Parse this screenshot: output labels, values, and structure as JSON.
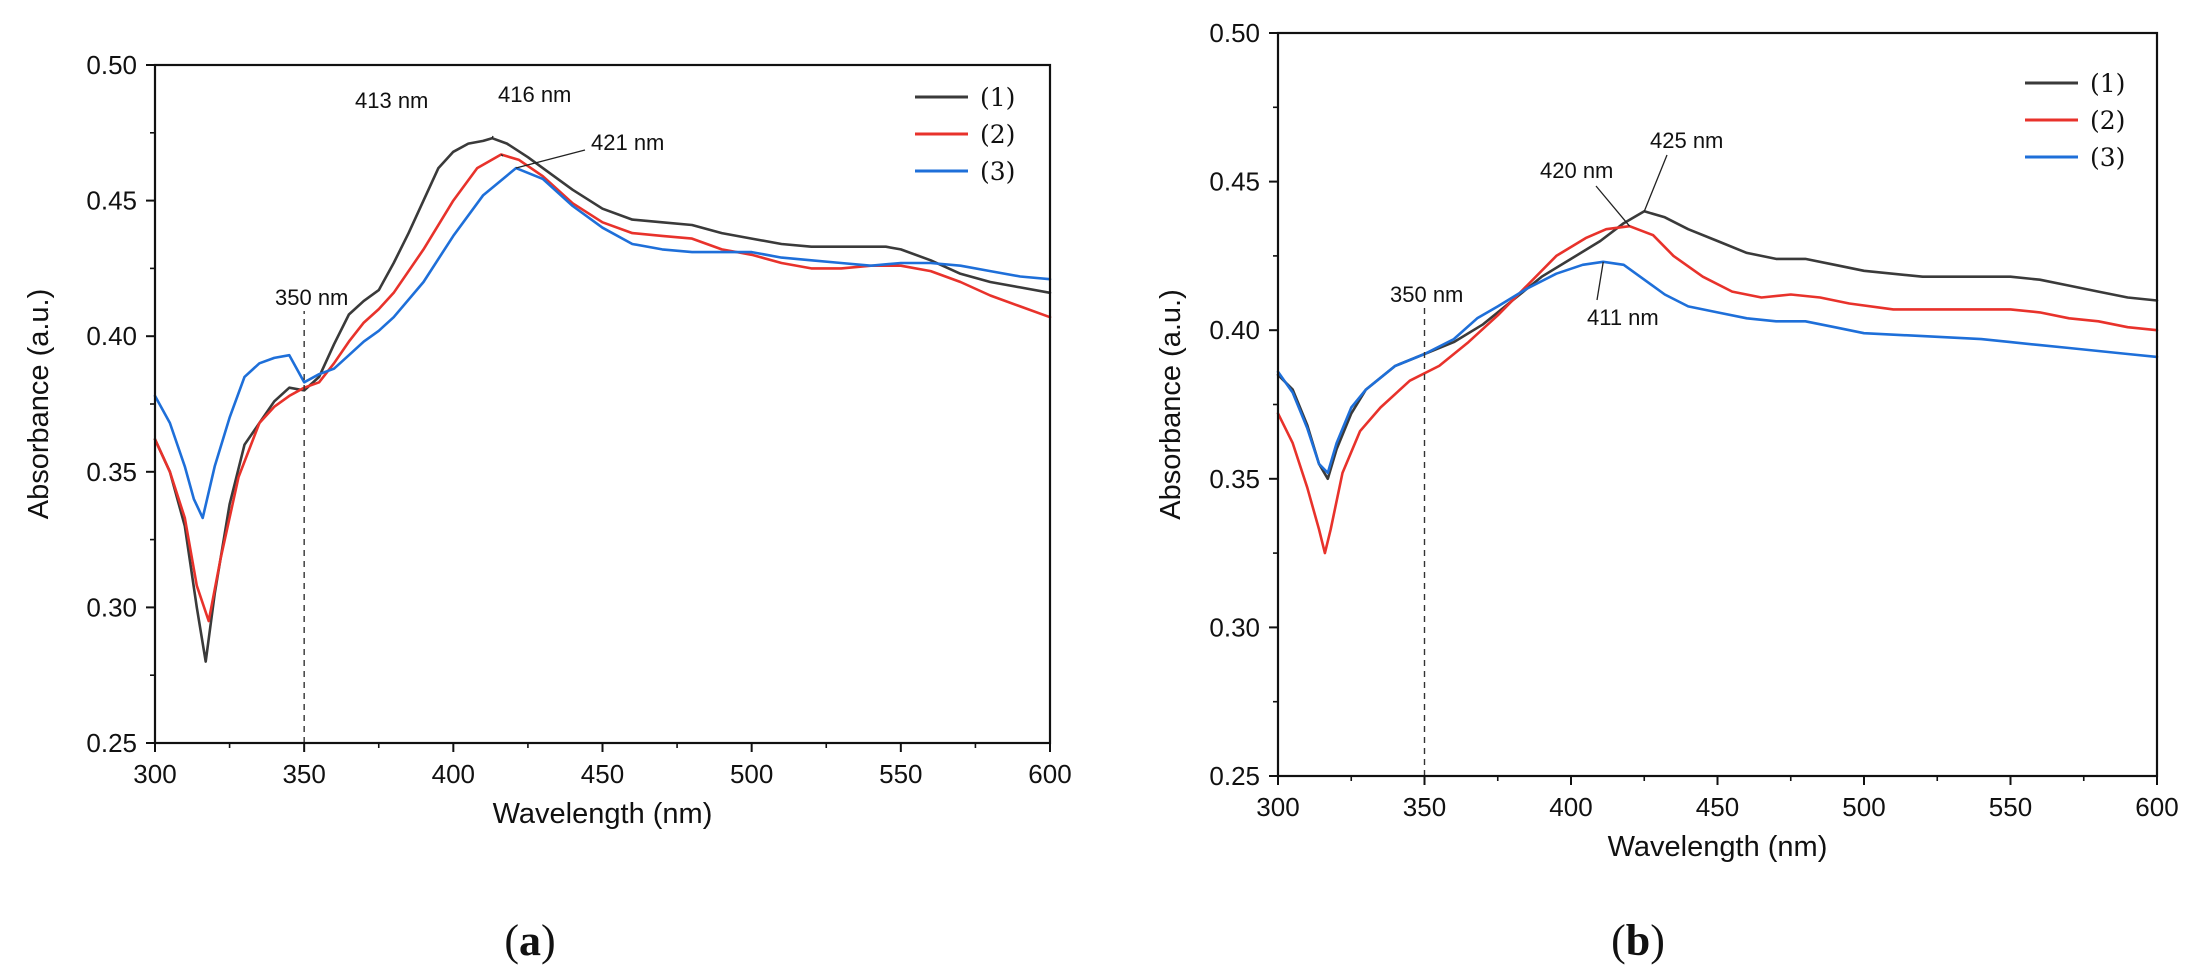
{
  "figure": {
    "panel_labels": [
      "a",
      "b"
    ]
  },
  "chart_data": [
    {
      "type": "line",
      "panel": "a",
      "title": "",
      "xlabel": "Wavelength (nm)",
      "ylabel": "Absorbance (a.u.)",
      "xlim": [
        300,
        600
      ],
      "ylim": [
        0.25,
        0.5
      ],
      "xticks": [
        300,
        350,
        400,
        450,
        500,
        550,
        600
      ],
      "xtick_labels": [
        "300",
        "350",
        "400",
        "450",
        "500",
        "550",
        "600"
      ],
      "yticks": [
        0.25,
        0.3,
        0.35,
        0.4,
        0.45,
        0.5
      ],
      "ytick_labels": [
        "0.25",
        "0.30",
        "0.35",
        "0.40",
        "0.45",
        "0.50"
      ],
      "grid": false,
      "legend_position": "top-right",
      "reference_line": {
        "x": 350,
        "label": "350 nm",
        "style": "dashed"
      },
      "series": [
        {
          "name": "(1)",
          "color": "#3a3a3a",
          "x": [
            300,
            305,
            310,
            314,
            317,
            320,
            325,
            330,
            335,
            340,
            345,
            350,
            355,
            360,
            365,
            370,
            375,
            380,
            385,
            390,
            395,
            400,
            405,
            410,
            413,
            418,
            425,
            430,
            440,
            450,
            460,
            470,
            480,
            490,
            500,
            510,
            520,
            530,
            540,
            545,
            550,
            560,
            570,
            580,
            590,
            600
          ],
          "y": [
            0.362,
            0.35,
            0.33,
            0.3,
            0.28,
            0.305,
            0.338,
            0.36,
            0.368,
            0.376,
            0.381,
            0.38,
            0.385,
            0.397,
            0.408,
            0.413,
            0.417,
            0.427,
            0.438,
            0.45,
            0.462,
            0.468,
            0.471,
            0.472,
            0.473,
            0.471,
            0.466,
            0.462,
            0.454,
            0.447,
            0.443,
            0.442,
            0.441,
            0.438,
            0.436,
            0.434,
            0.433,
            0.433,
            0.433,
            0.433,
            0.432,
            0.428,
            0.423,
            0.42,
            0.418,
            0.416
          ]
        },
        {
          "name": "(2)",
          "color": "#e8322b",
          "x": [
            300,
            305,
            310,
            314,
            318,
            322,
            328,
            335,
            340,
            345,
            350,
            355,
            360,
            365,
            370,
            375,
            380,
            390,
            400,
            408,
            416,
            422,
            430,
            440,
            450,
            460,
            470,
            480,
            490,
            500,
            510,
            520,
            530,
            540,
            550,
            560,
            570,
            580,
            590,
            600
          ],
          "y": [
            0.362,
            0.35,
            0.333,
            0.308,
            0.295,
            0.318,
            0.348,
            0.368,
            0.374,
            0.378,
            0.381,
            0.383,
            0.39,
            0.398,
            0.405,
            0.41,
            0.416,
            0.432,
            0.45,
            0.462,
            0.467,
            0.465,
            0.459,
            0.449,
            0.442,
            0.438,
            0.437,
            0.436,
            0.432,
            0.43,
            0.427,
            0.425,
            0.425,
            0.426,
            0.426,
            0.424,
            0.42,
            0.415,
            0.411,
            0.407
          ]
        },
        {
          "name": "(3)",
          "color": "#1e6fd9",
          "x": [
            300,
            305,
            310,
            313,
            316,
            320,
            325,
            330,
            335,
            340,
            345,
            350,
            355,
            360,
            365,
            370,
            375,
            380,
            390,
            400,
            410,
            421,
            430,
            440,
            450,
            460,
            470,
            480,
            490,
            500,
            510,
            520,
            530,
            540,
            550,
            560,
            570,
            580,
            590,
            600
          ],
          "y": [
            0.378,
            0.368,
            0.352,
            0.34,
            0.333,
            0.352,
            0.37,
            0.385,
            0.39,
            0.392,
            0.393,
            0.383,
            0.386,
            0.388,
            0.393,
            0.398,
            0.402,
            0.407,
            0.42,
            0.437,
            0.452,
            0.462,
            0.458,
            0.448,
            0.44,
            0.434,
            0.432,
            0.431,
            0.431,
            0.431,
            0.429,
            0.428,
            0.427,
            0.426,
            0.427,
            0.427,
            0.426,
            0.424,
            0.422,
            0.421
          ]
        }
      ],
      "annotations": [
        {
          "text": "413 nm",
          "x": 413,
          "y": 0.473
        },
        {
          "text": "416 nm",
          "x": 416,
          "y": 0.467
        },
        {
          "text": "421 nm",
          "x": 421,
          "y": 0.462
        }
      ]
    },
    {
      "type": "line",
      "panel": "b",
      "title": "",
      "xlabel": "Wavelength (nm)",
      "ylabel": "Absorbance (a.u.)",
      "xlim": [
        300,
        600
      ],
      "ylim": [
        0.25,
        0.5
      ],
      "xticks": [
        300,
        350,
        400,
        450,
        500,
        550,
        600
      ],
      "xtick_labels": [
        "300",
        "350",
        "400",
        "450",
        "500",
        "550",
        "600"
      ],
      "yticks": [
        0.25,
        0.3,
        0.35,
        0.4,
        0.45,
        0.5
      ],
      "ytick_labels": [
        "0.25",
        "0.30",
        "0.35",
        "0.40",
        "0.45",
        "0.50"
      ],
      "grid": false,
      "legend_position": "top-right",
      "reference_line": {
        "x": 350,
        "label": "350 nm",
        "style": "dashed"
      },
      "series": [
        {
          "name": "(1)",
          "color": "#3a3a3a",
          "x": [
            300,
            305,
            310,
            314,
            317,
            320,
            325,
            330,
            340,
            350,
            360,
            370,
            380,
            390,
            400,
            410,
            418,
            425,
            432,
            440,
            450,
            460,
            470,
            480,
            490,
            500,
            520,
            540,
            550,
            560,
            570,
            580,
            590,
            600
          ],
          "y": [
            0.385,
            0.38,
            0.368,
            0.355,
            0.35,
            0.36,
            0.372,
            0.38,
            0.388,
            0.392,
            0.396,
            0.402,
            0.41,
            0.418,
            0.424,
            0.43,
            0.436,
            0.44,
            0.438,
            0.434,
            0.43,
            0.426,
            0.424,
            0.424,
            0.422,
            0.42,
            0.418,
            0.418,
            0.418,
            0.417,
            0.415,
            0.413,
            0.411,
            0.41
          ]
        },
        {
          "name": "(2)",
          "color": "#e8322b",
          "x": [
            300,
            305,
            310,
            314,
            316,
            318,
            322,
            328,
            335,
            345,
            355,
            365,
            375,
            385,
            395,
            405,
            412,
            420,
            428,
            435,
            445,
            455,
            465,
            475,
            485,
            495,
            510,
            530,
            550,
            560,
            570,
            580,
            590,
            600
          ],
          "y": [
            0.372,
            0.362,
            0.347,
            0.333,
            0.325,
            0.333,
            0.352,
            0.366,
            0.374,
            0.383,
            0.388,
            0.396,
            0.405,
            0.415,
            0.425,
            0.431,
            0.434,
            0.435,
            0.432,
            0.425,
            0.418,
            0.413,
            0.411,
            0.412,
            0.411,
            0.409,
            0.407,
            0.407,
            0.407,
            0.406,
            0.404,
            0.403,
            0.401,
            0.4
          ]
        },
        {
          "name": "(3)",
          "color": "#1e6fd9",
          "x": [
            300,
            305,
            310,
            314,
            317,
            320,
            325,
            330,
            340,
            350,
            360,
            368,
            375,
            385,
            395,
            404,
            411,
            418,
            425,
            432,
            440,
            450,
            460,
            470,
            480,
            490,
            500,
            520,
            540,
            550,
            560,
            570,
            580,
            590,
            600
          ],
          "y": [
            0.386,
            0.379,
            0.367,
            0.355,
            0.352,
            0.362,
            0.374,
            0.38,
            0.388,
            0.392,
            0.397,
            0.404,
            0.408,
            0.414,
            0.419,
            0.422,
            0.423,
            0.422,
            0.417,
            0.412,
            0.408,
            0.406,
            0.404,
            0.403,
            0.403,
            0.401,
            0.399,
            0.398,
            0.397,
            0.396,
            0.395,
            0.394,
            0.393,
            0.392,
            0.391
          ]
        }
      ],
      "annotations": [
        {
          "text": "420 nm",
          "x": 420,
          "y": 0.435
        },
        {
          "text": "425 nm",
          "x": 425,
          "y": 0.44
        },
        {
          "text": "411 nm",
          "x": 411,
          "y": 0.423
        }
      ]
    }
  ]
}
